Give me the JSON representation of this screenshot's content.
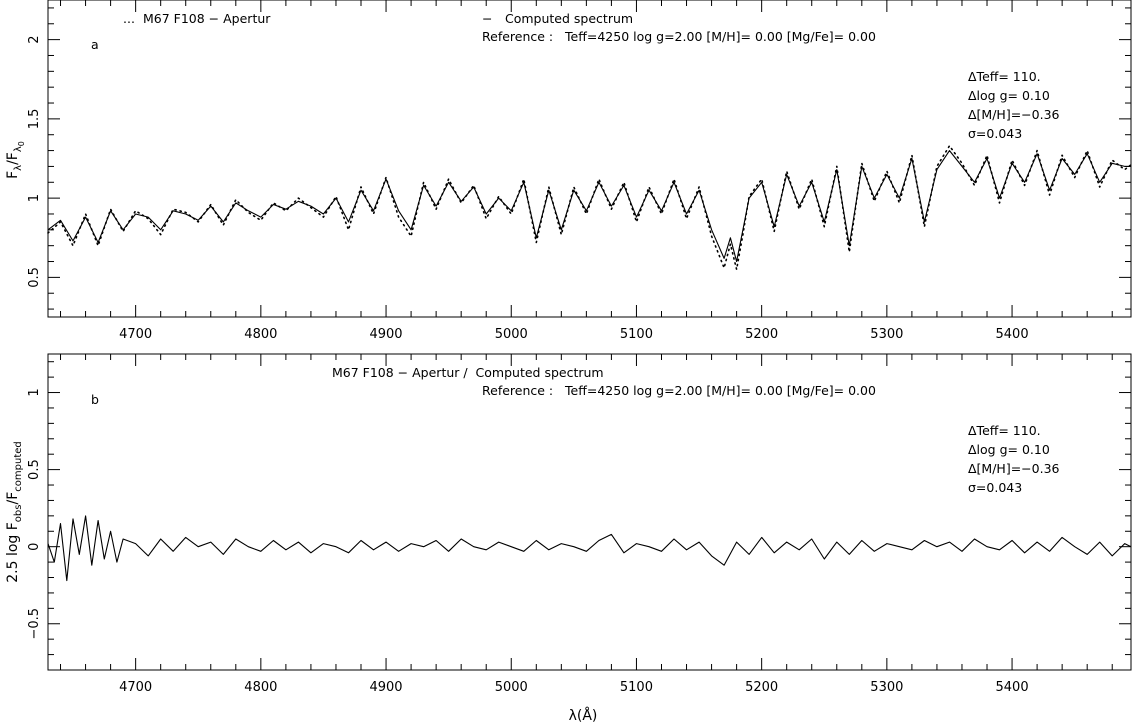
{
  "chart_data": [
    {
      "panel_letter": "a",
      "type": "line",
      "xlim": [
        4630,
        5495
      ],
      "ylim": [
        0.25,
        2.25
      ],
      "x_ticks": [
        4700,
        4800,
        4900,
        5000,
        5100,
        5200,
        5300,
        5400
      ],
      "y_ticks": [
        0.5,
        1,
        1.5,
        2
      ],
      "y_tick_labels": [
        "0.5",
        "1",
        "1.5",
        "2"
      ],
      "ylabel": {
        "main": "F",
        "sub1": "λ",
        "slash": "/F",
        "sub2": "λ",
        "sub3": "0"
      },
      "legend": {
        "observed_marker": "...",
        "observed_label": "M67 F108 − Apertur",
        "computed_marker": "−",
        "computed_label": "Computed spectrum",
        "reference": "Reference :   Teff=4250 log g=2.00 [M/H]= 0.00 [Mg/Fe]= 0.00"
      },
      "stats": [
        "ΔTeff= 110.",
        "Δlog g= 0.10",
        "Δ[M/H]=−0.36",
        "σ=0.043"
      ],
      "series": [
        {
          "name": "Computed spectrum",
          "style": "solid",
          "x": [
            4630,
            4640,
            4650,
            4660,
            4670,
            4680,
            4690,
            4700,
            4710,
            4720,
            4730,
            4740,
            4750,
            4760,
            4770,
            4780,
            4790,
            4800,
            4810,
            4820,
            4830,
            4840,
            4850,
            4860,
            4870,
            4880,
            4890,
            4900,
            4910,
            4920,
            4930,
            4940,
            4950,
            4960,
            4970,
            4980,
            4990,
            5000,
            5010,
            5020,
            5030,
            5040,
            5050,
            5060,
            5070,
            5080,
            5090,
            5100,
            5110,
            5120,
            5130,
            5140,
            5150,
            5160,
            5170,
            5175,
            5180,
            5185,
            5190,
            5200,
            5210,
            5220,
            5230,
            5240,
            5250,
            5260,
            5270,
            5280,
            5290,
            5300,
            5310,
            5320,
            5330,
            5340,
            5350,
            5360,
            5370,
            5380,
            5390,
            5400,
            5410,
            5420,
            5430,
            5440,
            5450,
            5460,
            5470,
            5480,
            5490,
            5495
          ],
          "y": [
            0.8,
            0.86,
            0.73,
            0.88,
            0.72,
            0.92,
            0.8,
            0.9,
            0.88,
            0.8,
            0.92,
            0.9,
            0.86,
            0.95,
            0.85,
            0.97,
            0.92,
            0.88,
            0.96,
            0.93,
            0.98,
            0.95,
            0.9,
            1.0,
            0.85,
            1.05,
            0.92,
            1.12,
            0.92,
            0.8,
            1.08,
            0.95,
            1.1,
            0.98,
            1.07,
            0.9,
            1.0,
            0.92,
            1.1,
            0.75,
            1.05,
            0.8,
            1.05,
            0.92,
            1.1,
            0.95,
            1.08,
            0.88,
            1.05,
            0.92,
            1.1,
            0.9,
            1.05,
            0.8,
            0.62,
            0.75,
            0.6,
            0.8,
            1.0,
            1.1,
            0.82,
            1.15,
            0.95,
            1.1,
            0.85,
            1.18,
            0.7,
            1.2,
            1.0,
            1.15,
            1.0,
            1.25,
            0.85,
            1.18,
            1.3,
            1.2,
            1.1,
            1.25,
            1.0,
            1.22,
            1.1,
            1.28,
            1.05,
            1.25,
            1.15,
            1.28,
            1.1,
            1.22,
            1.2,
            1.2
          ]
        },
        {
          "name": "M67 F108 − Apertur",
          "style": "dotted",
          "x": [
            4630,
            4640,
            4650,
            4660,
            4670,
            4680,
            4690,
            4700,
            4710,
            4720,
            4730,
            4740,
            4750,
            4760,
            4770,
            4780,
            4790,
            4800,
            4810,
            4820,
            4830,
            4840,
            4850,
            4860,
            4870,
            4880,
            4890,
            4900,
            4910,
            4920,
            4930,
            4940,
            4950,
            4960,
            4970,
            4980,
            4990,
            5000,
            5010,
            5020,
            5030,
            5040,
            5050,
            5060,
            5070,
            5080,
            5090,
            5100,
            5110,
            5120,
            5130,
            5140,
            5150,
            5160,
            5170,
            5175,
            5180,
            5185,
            5190,
            5200,
            5210,
            5220,
            5230,
            5240,
            5250,
            5260,
            5270,
            5280,
            5290,
            5300,
            5310,
            5320,
            5330,
            5340,
            5350,
            5360,
            5370,
            5380,
            5390,
            5400,
            5410,
            5420,
            5430,
            5440,
            5450,
            5460,
            5470,
            5480,
            5490,
            5495
          ],
          "y": [
            0.78,
            0.85,
            0.7,
            0.9,
            0.7,
            0.93,
            0.79,
            0.92,
            0.87,
            0.77,
            0.93,
            0.91,
            0.85,
            0.96,
            0.83,
            0.99,
            0.91,
            0.86,
            0.97,
            0.92,
            1.0,
            0.94,
            0.88,
            1.01,
            0.8,
            1.07,
            0.9,
            1.13,
            0.88,
            0.76,
            1.1,
            0.93,
            1.12,
            0.97,
            1.08,
            0.87,
            1.01,
            0.9,
            1.12,
            0.72,
            1.07,
            0.77,
            1.07,
            0.9,
            1.12,
            0.93,
            1.1,
            0.85,
            1.07,
            0.9,
            1.12,
            0.87,
            1.07,
            0.76,
            0.56,
            0.71,
            0.55,
            0.77,
            1.01,
            1.12,
            0.79,
            1.17,
            0.93,
            1.12,
            0.82,
            1.2,
            0.66,
            1.22,
            0.98,
            1.17,
            0.97,
            1.27,
            0.82,
            1.2,
            1.33,
            1.22,
            1.08,
            1.27,
            0.97,
            1.24,
            1.08,
            1.3,
            1.02,
            1.27,
            1.13,
            1.3,
            1.07,
            1.24,
            1.18,
            1.21
          ]
        }
      ]
    },
    {
      "panel_letter": "b",
      "type": "line",
      "xlim": [
        4630,
        5495
      ],
      "ylim": [
        -0.8,
        1.25
      ],
      "x_ticks": [
        4700,
        4800,
        4900,
        5000,
        5100,
        5200,
        5300,
        5400
      ],
      "y_ticks": [
        -0.5,
        0,
        0.5,
        1
      ],
      "y_tick_labels": [
        "−0.5",
        "0",
        "0.5",
        "1"
      ],
      "xlabel": "λ(Å)",
      "ylabel": {
        "main": "2.5 log F",
        "sub1": "obs",
        "slash": "/F",
        "sub2": "computed"
      },
      "title": "M67 F108 − Apertur /  Computed spectrum",
      "reference": "Reference :   Teff=4250 log g=2.00 [M/H]= 0.00 [Mg/Fe]= 0.00",
      "stats": [
        "ΔTeff= 110.",
        "Δlog g= 0.10",
        "Δ[M/H]=−0.36",
        "σ=0.043"
      ],
      "series": [
        {
          "name": "",
          "style": "solid",
          "x": [
            4630,
            4635,
            4640,
            4645,
            4650,
            4655,
            4660,
            4665,
            4670,
            4675,
            4680,
            4685,
            4690,
            4700,
            4710,
            4720,
            4730,
            4740,
            4750,
            4760,
            4770,
            4780,
            4790,
            4800,
            4810,
            4820,
            4830,
            4840,
            4850,
            4860,
            4870,
            4880,
            4890,
            4900,
            4910,
            4920,
            4930,
            4940,
            4950,
            4960,
            4970,
            4980,
            4990,
            5000,
            5010,
            5020,
            5030,
            5040,
            5050,
            5060,
            5070,
            5080,
            5090,
            5100,
            5110,
            5120,
            5130,
            5140,
            5150,
            5160,
            5170,
            5180,
            5190,
            5200,
            5210,
            5220,
            5230,
            5240,
            5250,
            5260,
            5270,
            5280,
            5290,
            5300,
            5310,
            5320,
            5330,
            5340,
            5350,
            5360,
            5370,
            5380,
            5390,
            5400,
            5410,
            5420,
            5430,
            5440,
            5450,
            5460,
            5470,
            5480,
            5490,
            5495
          ],
          "y": [
            0.02,
            -0.1,
            0.15,
            -0.22,
            0.18,
            -0.05,
            0.2,
            -0.12,
            0.17,
            -0.08,
            0.1,
            -0.1,
            0.05,
            0.02,
            -0.06,
            0.05,
            -0.03,
            0.06,
            0.0,
            0.03,
            -0.05,
            0.05,
            0.0,
            -0.03,
            0.04,
            -0.02,
            0.03,
            -0.04,
            0.02,
            0.0,
            -0.04,
            0.04,
            -0.02,
            0.03,
            -0.03,
            0.02,
            0.0,
            0.04,
            -0.03,
            0.05,
            0.0,
            -0.02,
            0.03,
            0.0,
            -0.03,
            0.04,
            -0.02,
            0.02,
            0.0,
            -0.03,
            0.04,
            0.08,
            -0.04,
            0.02,
            0.0,
            -0.03,
            0.05,
            -0.02,
            0.03,
            -0.06,
            -0.12,
            0.03,
            -0.05,
            0.06,
            -0.04,
            0.03,
            -0.02,
            0.05,
            -0.08,
            0.03,
            -0.05,
            0.04,
            -0.03,
            0.02,
            0.0,
            -0.02,
            0.04,
            0.0,
            0.03,
            -0.03,
            0.05,
            0.0,
            -0.02,
            0.04,
            -0.04,
            0.03,
            -0.03,
            0.06,
            0.0,
            -0.05,
            0.03,
            -0.06,
            0.02,
            0.0
          ]
        }
      ]
    }
  ]
}
